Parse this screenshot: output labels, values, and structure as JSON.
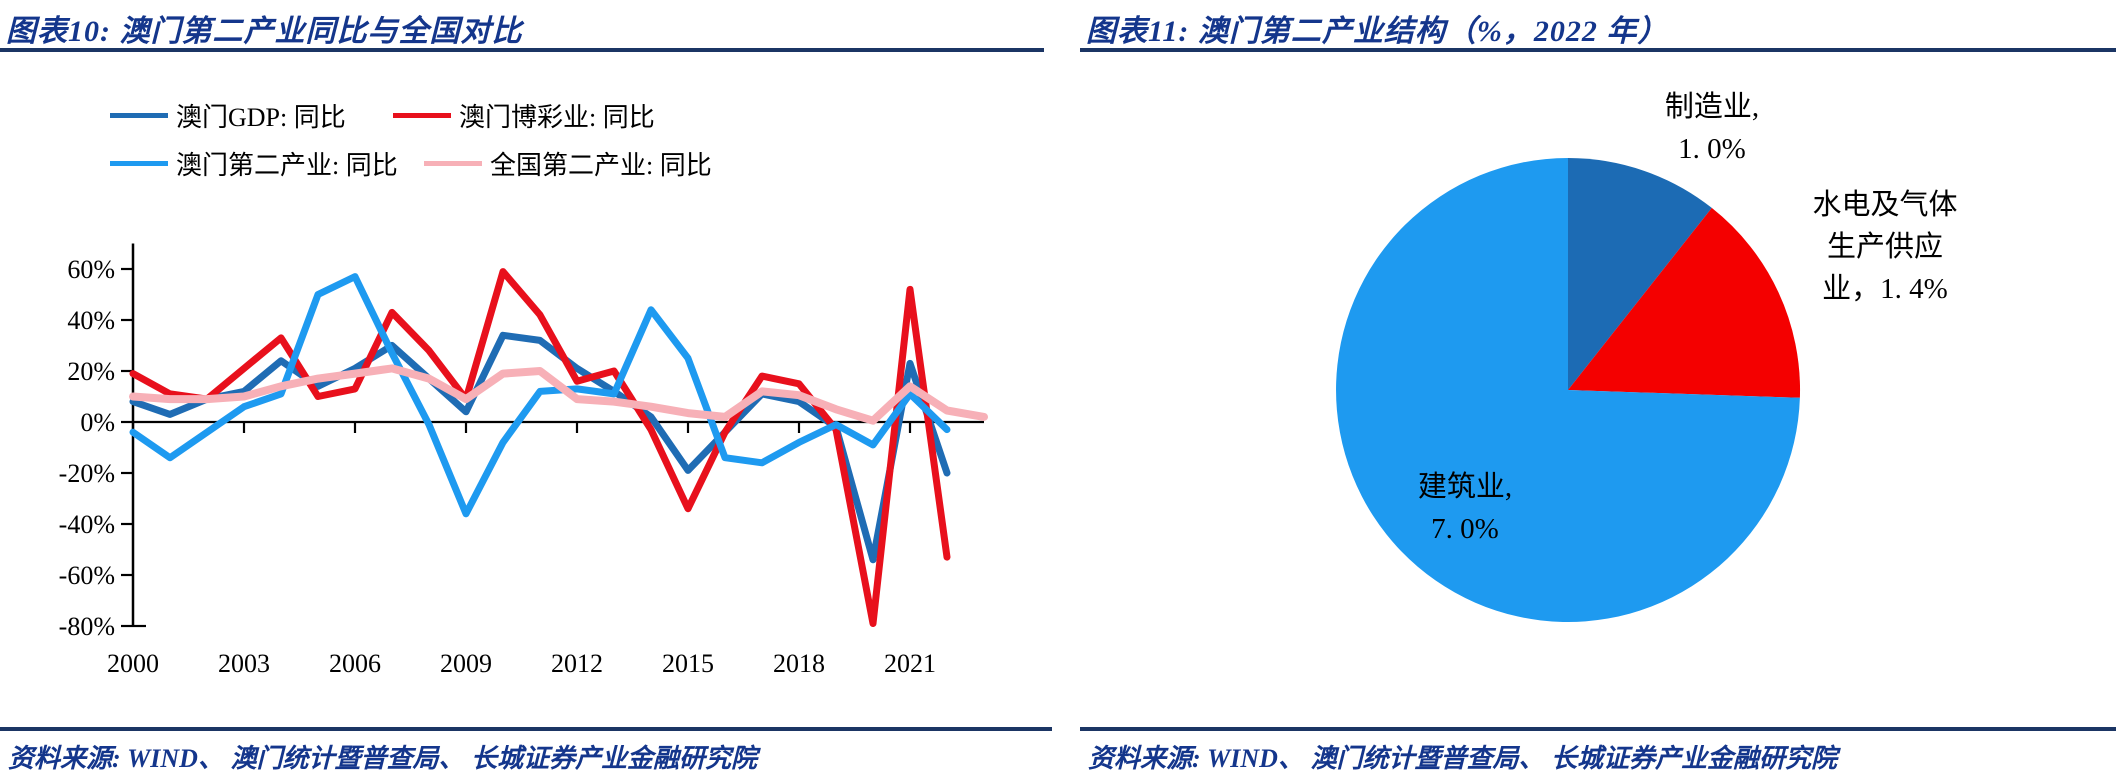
{
  "page": {
    "left": {
      "title": "图表10:  澳门第二产业同比与全国对比",
      "source": "资料来源: WIND、 澳门统计暨普查局、 长城证券产业金融研究院"
    },
    "right": {
      "title": "图表11:  澳门第二产业结构（%，2022 年）",
      "source": "资料来源: WIND、 澳门统计暨普查局、 长城证券产业金融研究院"
    }
  },
  "chart_data": [
    {
      "type": "line",
      "title": "澳门第二产业同比与全国对比",
      "x": [
        2000,
        2001,
        2002,
        2003,
        2004,
        2005,
        2006,
        2007,
        2008,
        2009,
        2010,
        2011,
        2012,
        2013,
        2014,
        2015,
        2016,
        2017,
        2018,
        2019,
        2020,
        2021,
        2022,
        2023
      ],
      "xtick_labels": [
        "2000",
        "2003",
        "2006",
        "2009",
        "2012",
        "2015",
        "2018",
        "2021"
      ],
      "xticks": [
        2000,
        2003,
        2006,
        2009,
        2012,
        2015,
        2018,
        2021
      ],
      "ytick_labels": [
        "60%",
        "40%",
        "20%",
        "0%",
        "-20%",
        "-40%",
        "-60%",
        "-80%"
      ],
      "yticks": [
        60,
        40,
        20,
        0,
        -20,
        -40,
        -60,
        -80
      ],
      "ylim": [
        -80,
        70
      ],
      "grid": false,
      "legend_position": "top",
      "series": [
        {
          "name": "澳门GDP: 同比",
          "color": "#1F6CB4",
          "values": [
            8,
            3,
            9,
            12,
            24,
            14,
            21,
            30,
            17,
            4,
            34,
            32,
            21,
            12,
            2,
            -19,
            -4,
            11,
            8,
            -2,
            -54,
            23,
            -20,
            null
          ]
        },
        {
          "name": "澳门博彩业: 同比",
          "color": "#E8101C",
          "values": [
            19,
            11,
            9,
            21,
            33,
            10,
            13,
            43,
            28,
            9,
            59,
            42,
            16,
            20,
            -3,
            -34,
            -4,
            18,
            15,
            -3,
            -79,
            52,
            -53,
            null
          ]
        },
        {
          "name": "澳门第二产业: 同比",
          "color": "#1E9AF0",
          "values": [
            -4,
            -14,
            -4,
            6,
            11,
            50,
            57,
            27,
            -1,
            -36,
            -8,
            12,
            13,
            11,
            44,
            25,
            -14,
            -16,
            -8,
            -1,
            -9,
            11,
            -3,
            null
          ]
        },
        {
          "name": "全国第二产业: 同比",
          "color": "#F7B0B7",
          "values": [
            10,
            9,
            9,
            10,
            14,
            17,
            19,
            21,
            17,
            9,
            19,
            20,
            9,
            8,
            6,
            3.5,
            2,
            12,
            10.5,
            5,
            0.5,
            14,
            4.5,
            2
          ]
        }
      ]
    },
    {
      "type": "pie",
      "title": "澳门第二产业结构（%，2022年）",
      "start_angle_deg": -90,
      "direction": "clockwise",
      "slices": [
        {
          "label": "制造业",
          "value": 1.0,
          "color": "#1C6BB4",
          "label_lines": [
            "制造业,",
            "1. 0%"
          ]
        },
        {
          "label": "水电及气体生产供应业",
          "value": 1.4,
          "color": "#F40000",
          "label_lines": [
            "水电及气体",
            "生产供应",
            "业，1. 4%"
          ]
        },
        {
          "label": "建筑业",
          "value": 7.0,
          "color": "#1E9AF0",
          "label_lines": [
            "建筑业,",
            "7. 0%"
          ]
        }
      ]
    }
  ]
}
